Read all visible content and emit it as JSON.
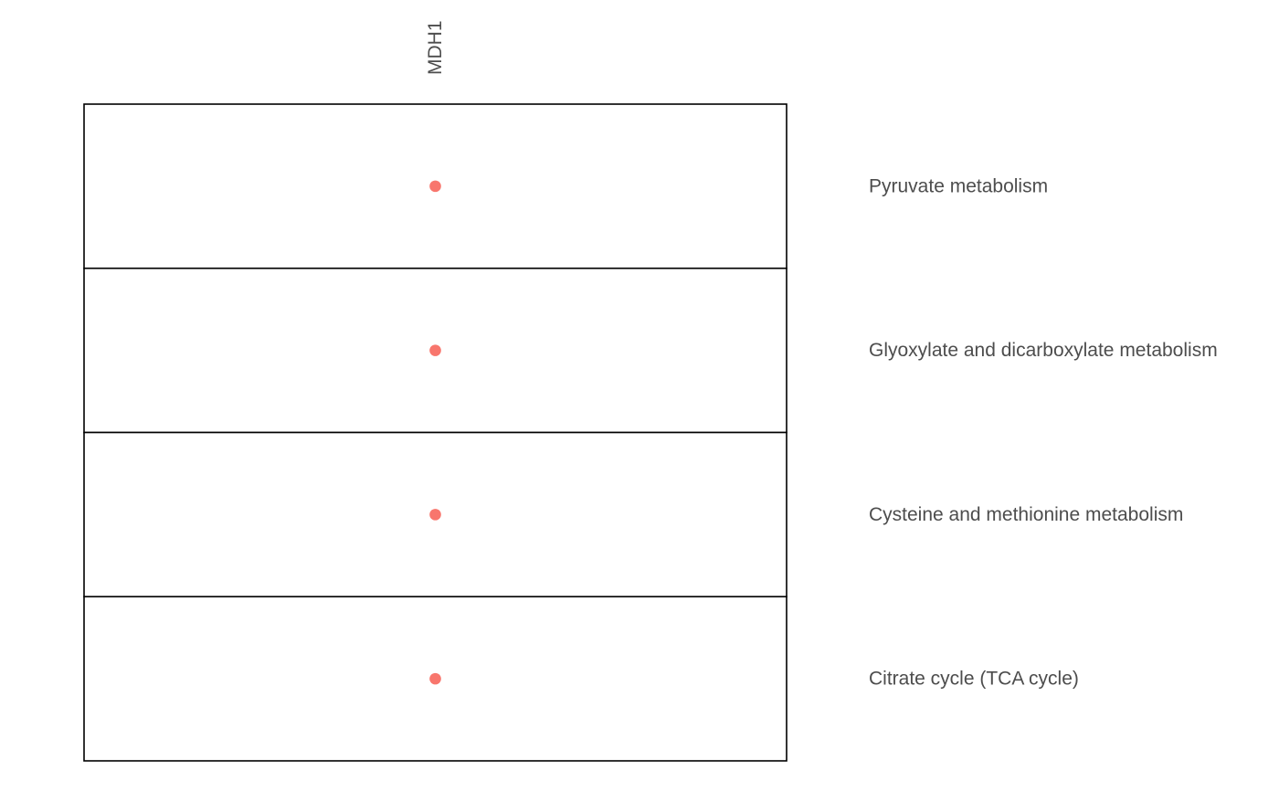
{
  "chart_data": {
    "type": "scatter",
    "title": "",
    "xlabel": "",
    "ylabel": "",
    "x_categories": [
      "MDH1"
    ],
    "y_categories": [
      "Pyruvate metabolism",
      "Glyoxylate and dicarboxylate metabolism",
      "Cysteine and methionine metabolism",
      "Citrate cycle (TCA cycle)"
    ],
    "points": [
      {
        "x": "MDH1",
        "y": "Pyruvate metabolism"
      },
      {
        "x": "MDH1",
        "y": "Glyoxylate and dicarboxylate metabolism"
      },
      {
        "x": "MDH1",
        "y": "Cysteine and methionine metabolism"
      },
      {
        "x": "MDH1",
        "y": "Citrate cycle (TCA cycle)"
      }
    ],
    "point_color": "#F8766D",
    "grid": false,
    "legend": "none"
  }
}
